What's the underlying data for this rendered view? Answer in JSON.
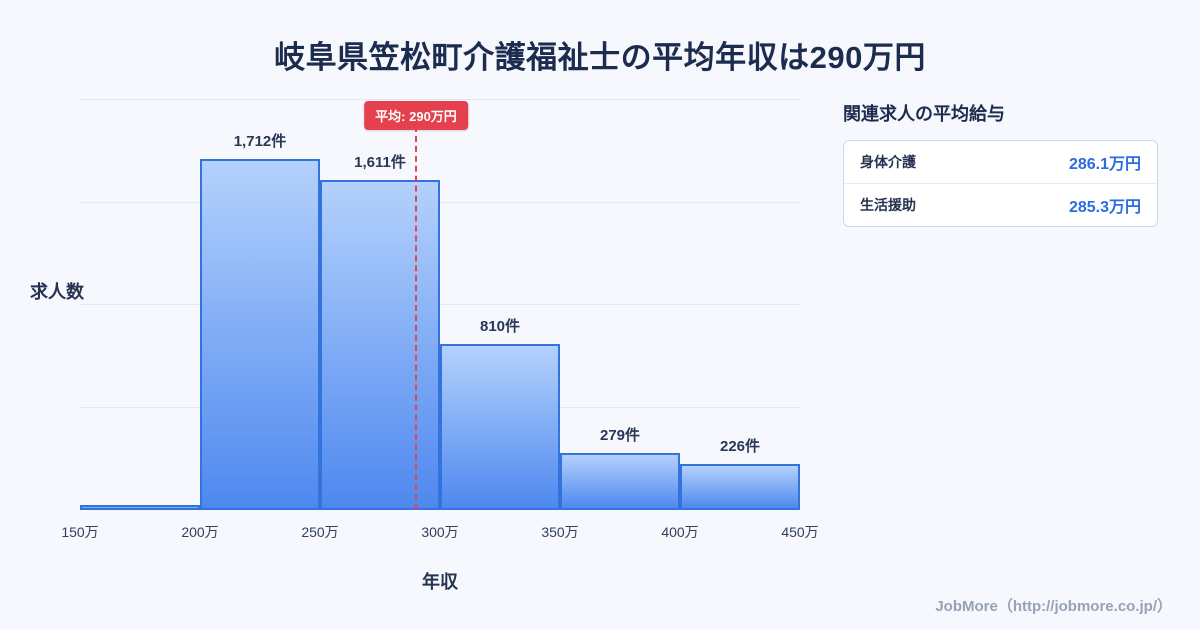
{
  "page": {
    "title": "岐阜県笠松町介護福祉士の平均年収は290万円",
    "footer": "JobMore（http://jobmore.co.jp/）"
  },
  "chart_data": {
    "type": "bar",
    "title": "岐阜県笠松町介護福祉士の平均年収は290万円",
    "xlabel": "年収",
    "ylabel": "求人数",
    "x_ticks": [
      "150万",
      "200万",
      "250万",
      "300万",
      "350万",
      "400万",
      "450万"
    ],
    "bin_ranges": [
      "150万-200万",
      "200万-250万",
      "250万-300万",
      "300万-350万",
      "350万-400万",
      "400万-450万"
    ],
    "values": [
      25,
      1712,
      1611,
      810,
      279,
      226
    ],
    "bar_labels": [
      "",
      "1,712件",
      "1,611件",
      "810件",
      "279件",
      "226件"
    ],
    "ylim": [
      0,
      2000
    ],
    "grid_values": [
      500,
      1000,
      1500,
      2000
    ],
    "grid": true,
    "legend_position": "none",
    "average": {
      "value": 290,
      "label": "平均: 290万円",
      "axis_range": [
        150,
        450
      ]
    }
  },
  "side_panel": {
    "heading": "関連求人の平均給与",
    "rows": [
      {
        "label": "身体介護",
        "value": "286.1万円"
      },
      {
        "label": "生活援助",
        "value": "285.3万円"
      }
    ]
  },
  "colors": {
    "background": "#f6f8fd",
    "title_navy": "#1c2c4e",
    "bar_fill_top": "#b4d1fc",
    "bar_fill_bottom": "#4e88ef",
    "bar_border": "#3273dc",
    "average_red": "#e4404d",
    "value_blue": "#2b6be4",
    "footer_gray": "#98a2b4"
  }
}
